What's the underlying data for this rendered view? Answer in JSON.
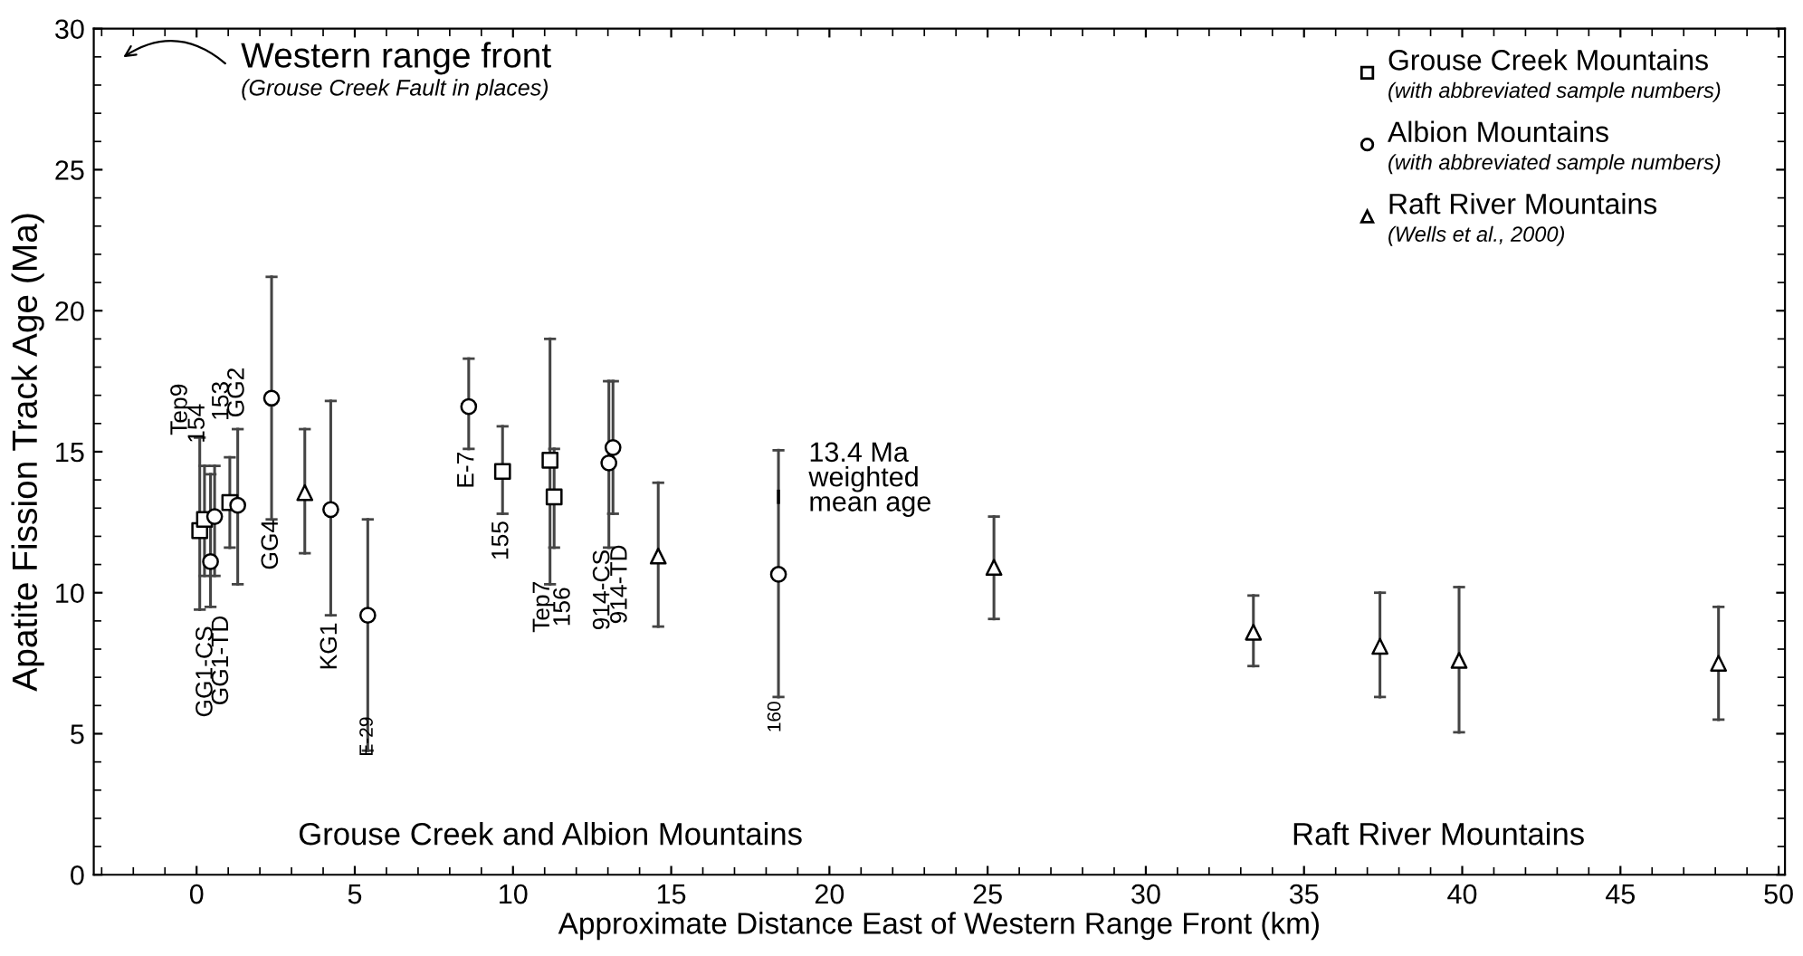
{
  "chart_data": {
    "type": "scatter",
    "xlabel": "Approximate Distance East of Western Range Front (km)",
    "ylabel": "Apatite Fission Track Age (Ma)",
    "xlim": [
      -3.25,
      50.2
    ],
    "ylim": [
      0,
      30
    ],
    "xticks": [
      0,
      5,
      10,
      15,
      20,
      25,
      30,
      35,
      40,
      45,
      50
    ],
    "yticks": [
      0,
      5,
      10,
      15,
      20,
      25,
      30
    ],
    "grid": false,
    "legend": "top right",
    "series": [
      {
        "name": "Grouse Creek Mountains\n(with abbreviated sample numbers)",
        "color": "#000000",
        "marker": "square",
        "x": [
          0.1,
          0.25,
          1.05,
          9.67,
          11.17,
          11.3
        ],
        "values": [
          12.2,
          12.6,
          13.2,
          14.3,
          14.7,
          13.4
        ],
        "errors": [
          [
            9.4,
            15.5
          ],
          [
            10.6,
            14.5
          ],
          [
            11.6,
            14.8
          ],
          [
            12.8,
            15.9
          ],
          [
            10.3,
            19.0
          ],
          [
            11.6,
            15.1
          ]
        ]
      },
      {
        "name": "Albion Mountains\n(with abbreviated sample numbers)",
        "color": "#000000",
        "marker": "circle",
        "x": [
          0.44,
          0.57,
          1.3,
          2.37,
          4.24,
          5.41,
          8.6,
          13.03,
          13.16,
          18.39
        ],
        "values": [
          11.1,
          12.7,
          13.1,
          16.9,
          12.95,
          9.2,
          16.6,
          14.6,
          15.15,
          10.65
        ],
        "errors": [
          [
            9.5,
            14.2
          ],
          [
            10.6,
            14.5
          ],
          [
            10.3,
            15.8
          ],
          [
            12.6,
            21.2
          ],
          [
            9.2,
            16.8
          ],
          [
            4.4,
            12.6
          ],
          [
            15.1,
            18.3
          ],
          [
            11.6,
            17.5
          ],
          [
            12.8,
            17.5
          ],
          [
            6.3,
            15.05
          ]
        ]
      },
      {
        "name": "Raft River Mountains\n(Wells et al., 2000)",
        "color": "#000000",
        "marker": "triangle",
        "x": [
          3.42,
          14.59,
          25.2,
          33.4,
          37.4,
          39.9,
          48.1
        ],
        "values": [
          13.55,
          11.3,
          10.9,
          8.6,
          8.1,
          7.6,
          7.5
        ],
        "errors": [
          [
            11.4,
            15.8
          ],
          [
            8.8,
            13.9
          ],
          [
            9.07,
            12.7
          ],
          [
            7.4,
            9.9
          ],
          [
            6.3,
            10.0
          ],
          [
            5.05,
            10.2
          ],
          [
            5.5,
            9.5
          ]
        ]
      }
    ],
    "annotations": [
      "Western range front",
      "(Grouse Creek Fault in places)",
      "Grouse Creek and Albion Mountains",
      "Raft River Mountains",
      {
        "text": "13.4 Ma\nweighted\nmean age",
        "x": 18.39,
        "y": 13.4
      },
      "Tep9",
      "154",
      "153",
      "GG2",
      "GG1-CS",
      "GG1-TD",
      "GG4",
      "KG1",
      "E-29",
      "E-7",
      "155",
      "Tep7",
      "156",
      "914-CS",
      "914-TD",
      "160"
    ]
  }
}
